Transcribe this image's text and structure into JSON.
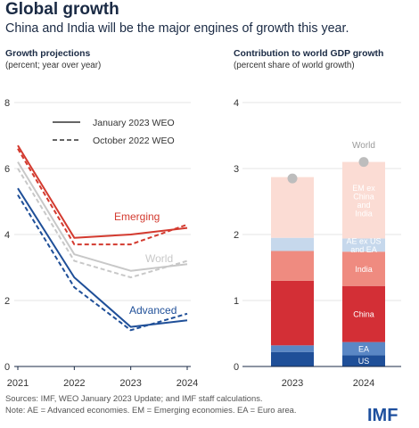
{
  "title": "Global growth",
  "subtitle": "China and India will be the major engines of growth this year.",
  "left_panel": {
    "title": "Growth projections",
    "subtitle": "(percent; year over year)"
  },
  "right_panel": {
    "title": "Contribution to world GDP growth",
    "subtitle": "(percent share of world growth)"
  },
  "footnote": {
    "line1": "Sources: IMF, WEO January 2023 Update; and IMF staff calculations.",
    "line2": "Note: AE = Advanced economies.  EM = Emerging economies. EA = Euro area."
  },
  "logo": "IMF",
  "colors": {
    "emerging": "#d33a2f",
    "world": "#c8c8c8",
    "advanced": "#1f4f98",
    "legend": "#333333",
    "gridline": "#e6e6e6",
    "axis": "#1a2a44",
    "world_marker": "#bdbdbd",
    "segments": {
      "US": "#1f4f98",
      "EA": "#5a87c5",
      "China": "#d32f36",
      "India": "#ef8b80",
      "AE ex US and EA": "#c6d8ec",
      "EM ex China and India": "#fbdcd4"
    }
  },
  "chart_data": [
    {
      "type": "line",
      "title": "Growth projections",
      "ylabel": "(percent; year over year)",
      "x": [
        "2021",
        "2022",
        "2023",
        "2024"
      ],
      "y_ticks": [
        0,
        2,
        4,
        6,
        8
      ],
      "ylim": [
        0,
        8
      ],
      "legend": [
        {
          "label": "January 2023 WEO",
          "style": "solid"
        },
        {
          "label": "October 2022 WEO",
          "style": "dashed"
        }
      ],
      "series": [
        {
          "name": "Emerging",
          "edition": "January 2023 WEO",
          "style": "solid",
          "values": [
            6.7,
            3.9,
            4.0,
            4.2
          ]
        },
        {
          "name": "Emerging",
          "edition": "October 2022 WEO",
          "style": "dashed",
          "values": [
            6.6,
            3.7,
            3.7,
            4.3
          ]
        },
        {
          "name": "World",
          "edition": "January 2023 WEO",
          "style": "solid",
          "values": [
            6.2,
            3.4,
            2.9,
            3.1
          ]
        },
        {
          "name": "World",
          "edition": "October 2022 WEO",
          "style": "dashed",
          "values": [
            6.0,
            3.2,
            2.7,
            3.2
          ]
        },
        {
          "name": "Advanced",
          "edition": "January 2023 WEO",
          "style": "solid",
          "values": [
            5.4,
            2.7,
            1.2,
            1.4
          ]
        },
        {
          "name": "Advanced",
          "edition": "October 2022 WEO",
          "style": "dashed",
          "values": [
            5.2,
            2.4,
            1.1,
            1.6
          ]
        }
      ],
      "series_labels": [
        "Emerging",
        "World",
        "Advanced"
      ],
      "grid": true
    },
    {
      "type": "bar",
      "stacked": true,
      "title": "Contribution to world GDP growth",
      "ylabel": "(percent share of world growth)",
      "categories": [
        "2023",
        "2024"
      ],
      "y_ticks": [
        0,
        1,
        2,
        3,
        4
      ],
      "ylim": [
        0,
        4
      ],
      "series": [
        {
          "name": "US",
          "values": [
            0.22,
            0.17
          ]
        },
        {
          "name": "EA",
          "values": [
            0.1,
            0.2
          ]
        },
        {
          "name": "China",
          "values": [
            0.98,
            0.85
          ]
        },
        {
          "name": "India",
          "values": [
            0.45,
            0.52
          ]
        },
        {
          "name": "AE ex US and EA",
          "values": [
            0.2,
            0.2
          ]
        },
        {
          "name": "EM ex China and India",
          "values": [
            0.92,
            1.16
          ]
        }
      ],
      "world_total": [
        2.85,
        3.1
      ],
      "world_label": "World",
      "segment_labels_2024": [
        "US",
        "EA",
        "China",
        "India",
        "AE ex US\nand EA",
        "EM ex\nChina\nand\nIndia"
      ],
      "grid": true
    }
  ]
}
